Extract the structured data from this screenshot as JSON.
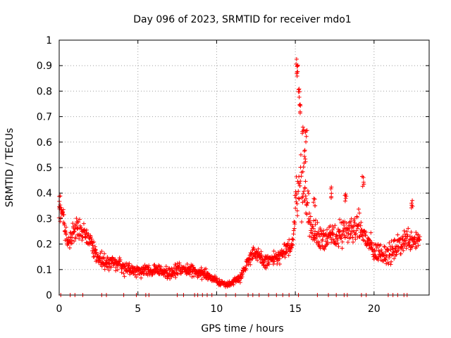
{
  "chart_data": {
    "type": "scatter",
    "title": "Day 096 of 2023, SRMTID for receiver mdo1",
    "xlabel": "GPS time / hours",
    "ylabel": "SRMTID / TECUs",
    "xlim": [
      0,
      23.5
    ],
    "ylim": [
      0,
      1
    ],
    "xticks": [
      0,
      5,
      10,
      15,
      20
    ],
    "yticks": [
      0,
      0.1,
      0.2,
      0.3,
      0.4,
      0.5,
      0.6,
      0.7,
      0.8,
      0.9,
      1
    ],
    "xtick_labels": [
      "0",
      "5",
      "10",
      "15",
      "20"
    ],
    "ytick_labels": [
      "0",
      "0.1",
      "0.2",
      "0.3",
      "0.4",
      "0.5",
      "0.6",
      "0.7",
      "0.8",
      "0.9",
      "1"
    ],
    "grid": true,
    "marker": "+",
    "marker_color": "#ff0000",
    "series": [
      {
        "name": "SRMTID",
        "envelope": [
          {
            "x": 0.0,
            "y": 0.32,
            "spread": 0.08
          },
          {
            "x": 0.2,
            "y": 0.33,
            "spread": 0.07
          },
          {
            "x": 0.5,
            "y": 0.21,
            "spread": 0.08
          },
          {
            "x": 1.0,
            "y": 0.26,
            "spread": 0.06
          },
          {
            "x": 1.5,
            "y": 0.25,
            "spread": 0.06
          },
          {
            "x": 2.0,
            "y": 0.21,
            "spread": 0.06
          },
          {
            "x": 2.5,
            "y": 0.14,
            "spread": 0.05
          },
          {
            "x": 3.0,
            "y": 0.13,
            "spread": 0.05
          },
          {
            "x": 3.5,
            "y": 0.13,
            "spread": 0.05
          },
          {
            "x": 4.0,
            "y": 0.11,
            "spread": 0.04
          },
          {
            "x": 5.0,
            "y": 0.09,
            "spread": 0.035
          },
          {
            "x": 6.0,
            "y": 0.1,
            "spread": 0.035
          },
          {
            "x": 7.0,
            "y": 0.09,
            "spread": 0.035
          },
          {
            "x": 8.0,
            "y": 0.1,
            "spread": 0.035
          },
          {
            "x": 9.0,
            "y": 0.09,
            "spread": 0.035
          },
          {
            "x": 10.0,
            "y": 0.055,
            "spread": 0.02
          },
          {
            "x": 10.7,
            "y": 0.04,
            "spread": 0.015
          },
          {
            "x": 11.5,
            "y": 0.07,
            "spread": 0.025
          },
          {
            "x": 12.3,
            "y": 0.17,
            "spread": 0.04
          },
          {
            "x": 13.0,
            "y": 0.13,
            "spread": 0.04
          },
          {
            "x": 14.0,
            "y": 0.15,
            "spread": 0.04
          },
          {
            "x": 14.8,
            "y": 0.2,
            "spread": 0.05
          },
          {
            "x": 15.2,
            "y": 0.45,
            "spread": 0.2
          },
          {
            "x": 15.6,
            "y": 0.42,
            "spread": 0.14
          },
          {
            "x": 16.0,
            "y": 0.25,
            "spread": 0.08
          },
          {
            "x": 17.0,
            "y": 0.22,
            "spread": 0.08
          },
          {
            "x": 18.0,
            "y": 0.24,
            "spread": 0.08
          },
          {
            "x": 19.0,
            "y": 0.27,
            "spread": 0.08
          },
          {
            "x": 20.0,
            "y": 0.17,
            "spread": 0.06
          },
          {
            "x": 21.0,
            "y": 0.16,
            "spread": 0.06
          },
          {
            "x": 22.0,
            "y": 0.22,
            "spread": 0.07
          },
          {
            "x": 22.9,
            "y": 0.22,
            "spread": 0.06
          }
        ],
        "peaks": [
          {
            "x": 0.05,
            "y": 0.39
          },
          {
            "x": 15.1,
            "y": 0.93
          },
          {
            "x": 15.15,
            "y": 0.9
          },
          {
            "x": 15.25,
            "y": 0.82
          },
          {
            "x": 15.3,
            "y": 0.76
          },
          {
            "x": 15.5,
            "y": 0.68
          },
          {
            "x": 15.7,
            "y": 0.65
          },
          {
            "x": 15.6,
            "y": 0.57
          },
          {
            "x": 17.3,
            "y": 0.43
          },
          {
            "x": 19.3,
            "y": 0.47
          },
          {
            "x": 18.2,
            "y": 0.41
          },
          {
            "x": 16.2,
            "y": 0.38
          },
          {
            "x": 22.4,
            "y": 0.38
          }
        ],
        "zero_markers_x": [
          0.1,
          0.7,
          1.0,
          1.5,
          2.7,
          3.0,
          4.1,
          4.9,
          5.5,
          5.7,
          7.5,
          7.9,
          8.6,
          8.8,
          9.1,
          9.4,
          9.7,
          10.6,
          11.2,
          12.0,
          12.3,
          12.7,
          13.3,
          13.8,
          14.2,
          14.6,
          15.2,
          16.4,
          17.1,
          17.6,
          18.1,
          18.3,
          19.2,
          19.5,
          20.9,
          21.2,
          21.5,
          21.9,
          22.1
        ]
      }
    ]
  }
}
